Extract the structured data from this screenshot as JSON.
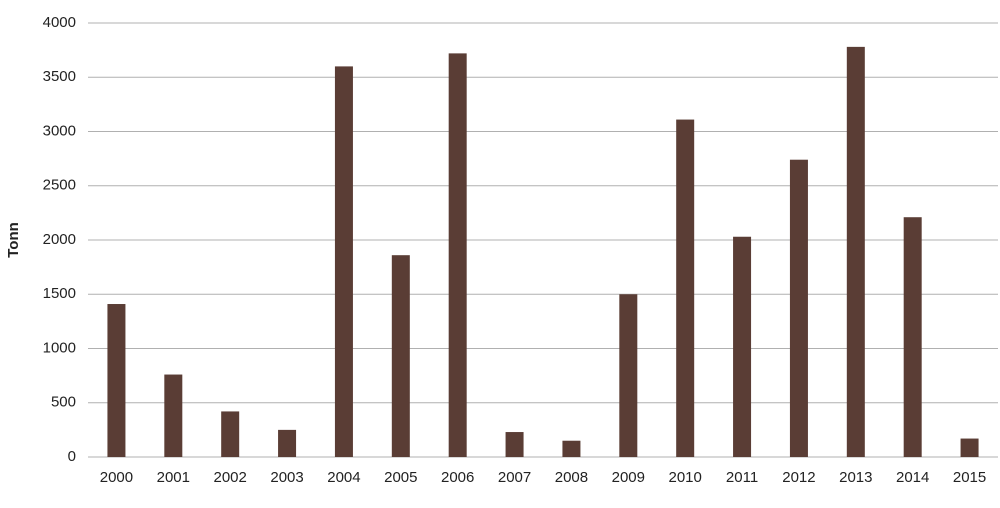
{
  "chart_data": {
    "type": "bar",
    "y_label": "Tonn",
    "categories": [
      "2000",
      "2001",
      "2002",
      "2003",
      "2004",
      "2005",
      "2006",
      "2007",
      "2008",
      "2009",
      "2010",
      "2011",
      "2012",
      "2013",
      "2014",
      "2015"
    ],
    "values": [
      1410,
      760,
      420,
      250,
      3600,
      1860,
      3720,
      230,
      150,
      1500,
      3110,
      2030,
      2740,
      3780,
      2210,
      170
    ],
    "color": "#5a3d35",
    "ylim": [
      0,
      4000
    ],
    "yticks": [
      0,
      500,
      1000,
      1500,
      2000,
      2500,
      3000,
      3500,
      4000
    ],
    "grid": true
  }
}
